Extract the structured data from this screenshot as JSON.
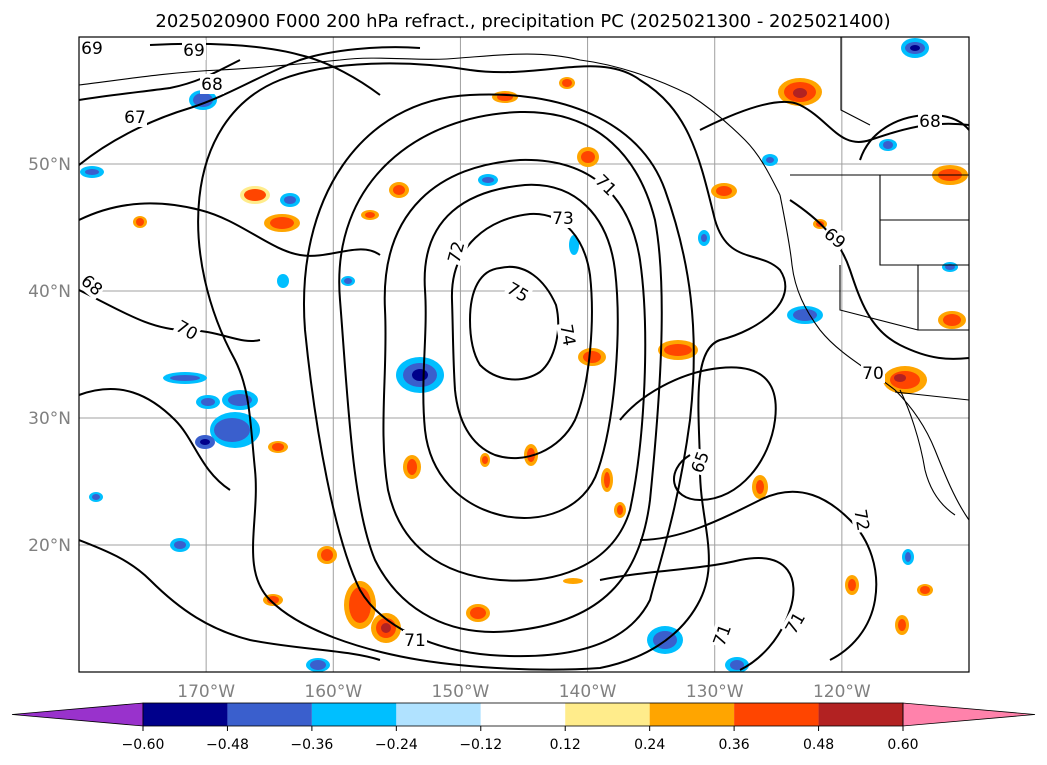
{
  "title": "2025020900 F000 200 hPa refract., precipitation PC (2025021300 - 2025021400)",
  "map": {
    "lon_range": [
      -180,
      -110
    ],
    "lat_range": [
      10,
      60
    ],
    "lat_ticks": [
      {
        "lat": 50,
        "label": "50°N"
      },
      {
        "lat": 40,
        "label": "40°N"
      },
      {
        "lat": 30,
        "label": "30°N"
      },
      {
        "lat": 20,
        "label": "20°N"
      }
    ],
    "lon_ticks": [
      {
        "lon": -170,
        "label": "170°W"
      },
      {
        "lon": -160,
        "label": "160°W"
      },
      {
        "lon": -150,
        "label": "150°W"
      },
      {
        "lon": -140,
        "label": "140°W"
      },
      {
        "lon": -130,
        "label": "130°W"
      },
      {
        "lon": -120,
        "label": "120°W"
      }
    ],
    "gridlines": true,
    "contour_labels": [
      "69",
      "69",
      "68",
      "67",
      "68",
      "71",
      "73",
      "72",
      "75",
      "74",
      "69",
      "68",
      "70",
      "70",
      "65",
      "71",
      "71",
      "71",
      "72"
    ]
  },
  "colorbar": {
    "boundaries": [
      -0.72,
      -0.6,
      -0.48,
      -0.36,
      -0.24,
      -0.12,
      0.12,
      0.24,
      0.36,
      0.48,
      0.6,
      0.72
    ],
    "colors": [
      "#9932cc",
      "#00008b",
      "#3a5fcd",
      "#00bfff",
      "#b0e2ff",
      "#ffffff",
      "#ffec8b",
      "#ffa500",
      "#ff4500",
      "#b22222",
      "#ff82ab"
    ],
    "tick_labels": [
      "−0.60",
      "−0.48",
      "−0.36",
      "−0.24",
      "−0.12",
      "0.12",
      "0.24",
      "0.36",
      "0.48",
      "0.60"
    ],
    "extend": "both"
  }
}
